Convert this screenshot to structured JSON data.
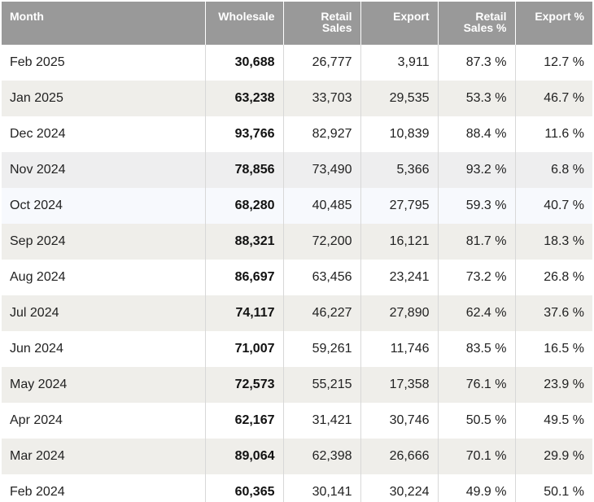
{
  "chart_data": {
    "type": "table",
    "columns": [
      "Month",
      "Wholesale",
      "Retail Sales",
      "Export",
      "Retail Sales %",
      "Export %"
    ],
    "header_lines": {
      "month": "Month",
      "wholesale": "Wholesale",
      "retail_sales": "Retail Sales",
      "export": "Export",
      "retail_pct_line1": "Retail",
      "retail_pct_line2": "Sales %",
      "export_pct": "Export %"
    },
    "rows": [
      {
        "month": "Feb 2025",
        "wholesale": "30,688",
        "retail": "26,777",
        "export": "3,911",
        "retail_pct": "87.3 %",
        "export_pct": "12.7 %"
      },
      {
        "month": "Jan 2025",
        "wholesale": "63,238",
        "retail": "33,703",
        "export": "29,535",
        "retail_pct": "53.3 %",
        "export_pct": "46.7 %"
      },
      {
        "month": "Dec 2024",
        "wholesale": "93,766",
        "retail": "82,927",
        "export": "10,839",
        "retail_pct": "88.4 %",
        "export_pct": "11.6 %"
      },
      {
        "month": "Nov 2024",
        "wholesale": "78,856",
        "retail": "73,490",
        "export": "5,366",
        "retail_pct": "93.2 %",
        "export_pct": "6.8 %"
      },
      {
        "month": "Oct 2024",
        "wholesale": "68,280",
        "retail": "40,485",
        "export": "27,795",
        "retail_pct": "59.3 %",
        "export_pct": "40.7 %"
      },
      {
        "month": "Sep 2024",
        "wholesale": "88,321",
        "retail": "72,200",
        "export": "16,121",
        "retail_pct": "81.7 %",
        "export_pct": "18.3 %"
      },
      {
        "month": "Aug 2024",
        "wholesale": "86,697",
        "retail": "63,456",
        "export": "23,241",
        "retail_pct": "73.2 %",
        "export_pct": "26.8 %"
      },
      {
        "month": "Jul 2024",
        "wholesale": "74,117",
        "retail": "46,227",
        "export": "27,890",
        "retail_pct": "62.4 %",
        "export_pct": "37.6 %"
      },
      {
        "month": "Jun 2024",
        "wholesale": "71,007",
        "retail": "59,261",
        "export": "11,746",
        "retail_pct": "83.5 %",
        "export_pct": "16.5 %"
      },
      {
        "month": "May 2024",
        "wholesale": "72,573",
        "retail": "55,215",
        "export": "17,358",
        "retail_pct": "76.1 %",
        "export_pct": "23.9 %"
      },
      {
        "month": "Apr 2024",
        "wholesale": "62,167",
        "retail": "31,421",
        "export": "30,746",
        "retail_pct": "50.5 %",
        "export_pct": "49.5 %"
      },
      {
        "month": "Mar 2024",
        "wholesale": "89,064",
        "retail": "62,398",
        "export": "26,666",
        "retail_pct": "70.1 %",
        "export_pct": "29.9 %"
      },
      {
        "month": "Feb 2024",
        "wholesale": "60,365",
        "retail": "30,141",
        "export": "30,224",
        "retail_pct": "49.9 %",
        "export_pct": "50.1 %"
      }
    ],
    "colors": {
      "header_bg": "#999999",
      "header_text": "#ffffff",
      "row_white": "#ffffff",
      "row_beige": "#efeeea",
      "row_grey": "#eeeeef",
      "row_blue": "#f7f9fd"
    }
  }
}
